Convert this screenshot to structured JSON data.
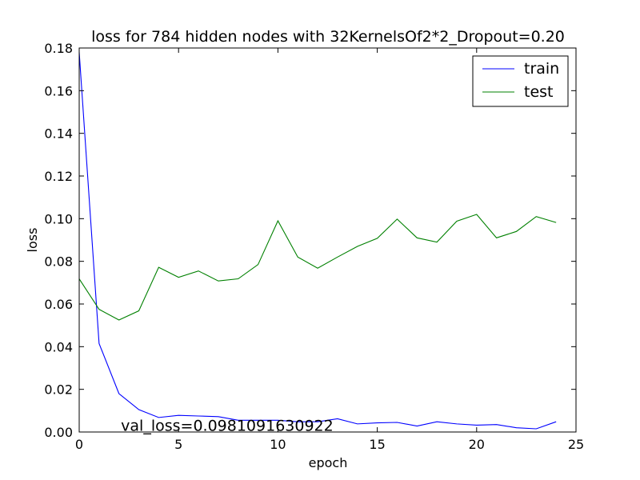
{
  "chart_data": {
    "type": "line",
    "title": "loss for 784 hidden nodes with 32KernelsOf2*2_Dropout=0.20",
    "xlabel": "epoch",
    "ylabel": "loss",
    "xlim": [
      0,
      25
    ],
    "ylim": [
      0,
      0.18
    ],
    "xticks": [
      0,
      5,
      10,
      15,
      20,
      25
    ],
    "yticks": [
      0.0,
      0.02,
      0.04,
      0.06,
      0.08,
      0.1,
      0.12,
      0.14,
      0.16,
      0.18
    ],
    "grid": false,
    "legend_position": "top-right",
    "x": [
      0,
      1,
      2,
      3,
      4,
      5,
      6,
      7,
      8,
      9,
      10,
      11,
      12,
      13,
      14,
      15,
      16,
      17,
      18,
      19,
      20,
      21,
      22,
      23,
      24
    ],
    "series": [
      {
        "name": "train",
        "color": "#0000ff",
        "values": [
          0.178,
          0.0415,
          0.018,
          0.0105,
          0.0068,
          0.0078,
          0.0075,
          0.0072,
          0.0055,
          0.0055,
          0.0055,
          0.0048,
          0.0048,
          0.0062,
          0.0038,
          0.0043,
          0.0045,
          0.0028,
          0.0048,
          0.0038,
          0.0032,
          0.0035,
          0.002,
          0.0015,
          0.0048
        ]
      },
      {
        "name": "test",
        "color": "#008000",
        "values": [
          0.0718,
          0.0575,
          0.0525,
          0.0568,
          0.0772,
          0.0725,
          0.0755,
          0.0708,
          0.0718,
          0.0785,
          0.099,
          0.082,
          0.0768,
          0.082,
          0.087,
          0.0908,
          0.0998,
          0.091,
          0.089,
          0.0988,
          0.102,
          0.091,
          0.094,
          0.101,
          0.0982
        ]
      }
    ],
    "annotation": {
      "text": "val_loss=0.0981091630922",
      "x": 2.1,
      "y": 0.0005
    }
  }
}
